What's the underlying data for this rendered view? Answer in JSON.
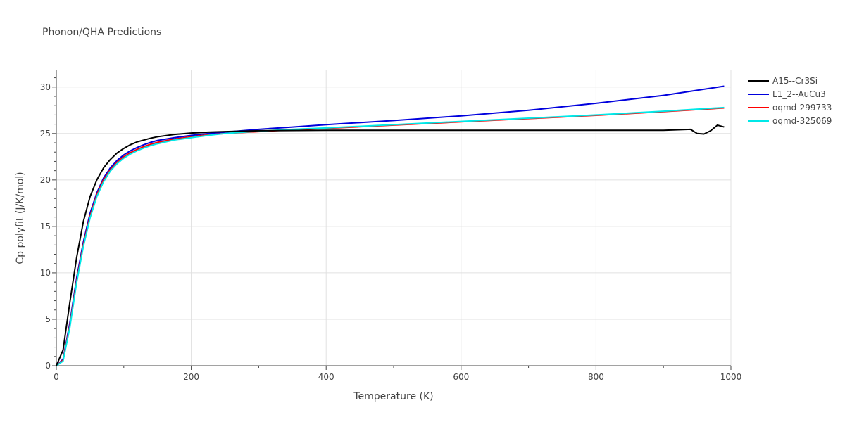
{
  "chart_data": {
    "type": "line",
    "title": "Phonon/QHA Predictions",
    "xlabel": "Temperature (K)",
    "ylabel": "Cp polyfit (J/K/mol)",
    "xlim": [
      0,
      1000
    ],
    "ylim": [
      0,
      31.8
    ],
    "xticks": [
      0,
      200,
      400,
      600,
      800,
      1000
    ],
    "yticks": [
      0,
      5,
      10,
      15,
      20,
      25,
      30
    ],
    "grid": true,
    "legend_position": "top-right",
    "series": [
      {
        "name": "A15--Cr3Si",
        "color": "#000000",
        "x": [
          0,
          10,
          20,
          30,
          40,
          50,
          60,
          70,
          80,
          90,
          100,
          110,
          120,
          130,
          140,
          150,
          175,
          200,
          225,
          250,
          300,
          400,
          500,
          600,
          700,
          800,
          900,
          940,
          950,
          960,
          970,
          980,
          990
        ],
        "y": [
          0,
          1.7,
          6.8,
          11.6,
          15.5,
          18.2,
          20.0,
          21.3,
          22.2,
          22.9,
          23.4,
          23.8,
          24.1,
          24.3,
          24.5,
          24.65,
          24.9,
          25.05,
          25.15,
          25.2,
          25.3,
          25.35,
          25.35,
          25.35,
          25.35,
          25.35,
          25.35,
          25.45,
          25.0,
          24.95,
          25.3,
          25.9,
          25.7
        ]
      },
      {
        "name": "L1_2--AuCu3",
        "color": "#0000dd",
        "x": [
          0,
          10,
          20,
          30,
          40,
          50,
          60,
          70,
          80,
          90,
          100,
          110,
          120,
          130,
          140,
          150,
          175,
          200,
          225,
          250,
          300,
          350,
          400,
          500,
          600,
          700,
          800,
          900,
          990
        ],
        "y": [
          0,
          0.7,
          4.6,
          9.4,
          13.3,
          16.4,
          18.6,
          20.2,
          21.3,
          22.1,
          22.7,
          23.15,
          23.5,
          23.8,
          24.05,
          24.25,
          24.55,
          24.8,
          25.0,
          25.15,
          25.45,
          25.7,
          25.95,
          26.4,
          26.9,
          27.5,
          28.25,
          29.1,
          30.1
        ]
      },
      {
        "name": "oqmd-299733",
        "color": "#ff0000",
        "x": [
          0,
          10,
          20,
          30,
          40,
          50,
          60,
          70,
          80,
          90,
          100,
          110,
          120,
          130,
          140,
          150,
          175,
          200,
          225,
          250,
          300,
          350,
          400,
          500,
          600,
          700,
          800,
          900,
          990
        ],
        "y": [
          0,
          0.6,
          4.3,
          9.1,
          13.0,
          16.1,
          18.4,
          20.0,
          21.1,
          21.9,
          22.5,
          22.95,
          23.3,
          23.6,
          23.85,
          24.05,
          24.4,
          24.65,
          24.85,
          25.0,
          25.2,
          25.4,
          25.55,
          25.9,
          26.25,
          26.6,
          26.95,
          27.35,
          27.75
        ]
      },
      {
        "name": "oqmd-325069",
        "color": "#00e8e8",
        "x": [
          0,
          10,
          20,
          30,
          40,
          50,
          60,
          70,
          80,
          90,
          100,
          110,
          120,
          130,
          140,
          150,
          175,
          200,
          225,
          250,
          300,
          350,
          400,
          500,
          600,
          700,
          800,
          900,
          990
        ],
        "y": [
          0,
          0.5,
          4.1,
          8.9,
          12.8,
          15.9,
          18.2,
          19.8,
          20.95,
          21.75,
          22.35,
          22.8,
          23.15,
          23.45,
          23.7,
          23.9,
          24.3,
          24.55,
          24.8,
          25.0,
          25.25,
          25.45,
          25.6,
          25.95,
          26.3,
          26.65,
          27.0,
          27.4,
          27.8
        ]
      }
    ]
  }
}
